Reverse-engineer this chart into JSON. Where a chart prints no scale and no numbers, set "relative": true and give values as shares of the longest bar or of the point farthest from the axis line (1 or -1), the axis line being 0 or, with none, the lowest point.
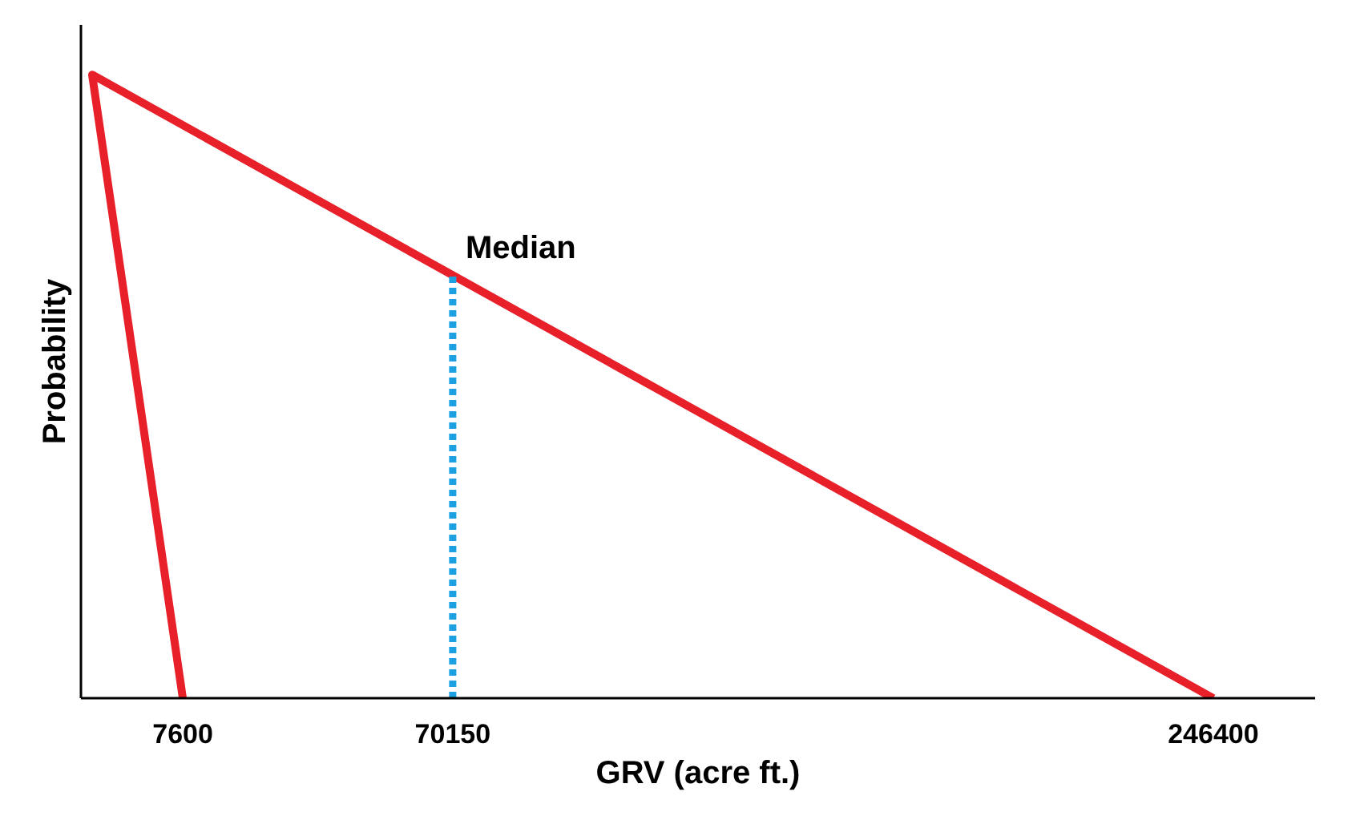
{
  "chart_data": {
    "type": "line",
    "xlabel": "GRV (acre ft.)",
    "ylabel": "Probability",
    "relative": true,
    "xlim": [
      -16000,
      270000
    ],
    "xticks": [
      7600,
      70150,
      246400
    ],
    "tick_labels": "x",
    "grid": false,
    "legend": false,
    "series": [
      {
        "color": "#e8202a",
        "x": [
          7600,
          -13400,
          246400
        ],
        "values": [
          0,
          1,
          0
        ]
      },
      {
        "name": "Median",
        "color": "#1ba1e2",
        "x": [
          70150,
          70150
        ],
        "values": [
          0,
          0.678
        ],
        "line_style": "dotted"
      }
    ]
  }
}
